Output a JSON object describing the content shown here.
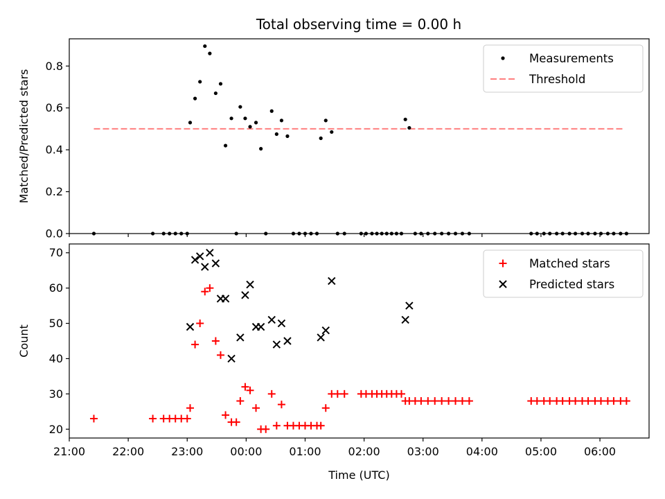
{
  "title": "Total observing time = 0.00 h",
  "colors": {
    "measurement": "#000000",
    "threshold": "#ff7f7f",
    "matched": "#ff0000",
    "predicted": "#000000"
  },
  "chart_data": [
    {
      "type": "scatter",
      "ylabel": "Matched/Predicted stars",
      "xlim": [
        "21:00",
        "06:50"
      ],
      "ylim": [
        0,
        0.93
      ],
      "y_ticks": [
        "0.0",
        "0.2",
        "0.4",
        "0.6",
        "0.8"
      ],
      "legend_position": "top-right",
      "legend": [
        "Measurements",
        "Threshold"
      ],
      "threshold": {
        "value": 0.5,
        "x_start": "21:25",
        "x_end": "06:25"
      },
      "series": [
        {
          "name": "Measurements",
          "points": [
            [
              "21:25",
              0
            ],
            [
              "22:25",
              0
            ],
            [
              "22:36",
              0
            ],
            [
              "22:42",
              0
            ],
            [
              "22:48",
              0
            ],
            [
              "22:54",
              0
            ],
            [
              "23:00",
              0
            ],
            [
              "23:03",
              0.53
            ],
            [
              "23:08",
              0.645
            ],
            [
              "23:13",
              0.725
            ],
            [
              "23:18",
              0.895
            ],
            [
              "23:23",
              0.86
            ],
            [
              "23:29",
              0.67
            ],
            [
              "23:34",
              0.715
            ],
            [
              "23:39",
              0.42
            ],
            [
              "23:45",
              0.55
            ],
            [
              "23:50",
              0
            ],
            [
              "23:54",
              0.605
            ],
            [
              "23:59",
              0.55
            ],
            [
              "00:04",
              0.51
            ],
            [
              "00:10",
              0.53
            ],
            [
              "00:15",
              0.405
            ],
            [
              "00:20",
              0
            ],
            [
              "00:26",
              0.585
            ],
            [
              "00:31",
              0.475
            ],
            [
              "00:36",
              0.54
            ],
            [
              "00:42",
              0.465
            ],
            [
              "00:48",
              0
            ],
            [
              "00:54",
              0
            ],
            [
              "01:00",
              0
            ],
            [
              "01:06",
              0
            ],
            [
              "01:12",
              0
            ],
            [
              "01:16",
              0.455
            ],
            [
              "01:21",
              0.54
            ],
            [
              "01:27",
              0.485
            ],
            [
              "01:33",
              0
            ],
            [
              "01:40",
              0
            ],
            [
              "01:57",
              0
            ],
            [
              "02:02",
              0
            ],
            [
              "02:08",
              0
            ],
            [
              "02:13",
              0
            ],
            [
              "02:18",
              0
            ],
            [
              "02:23",
              0
            ],
            [
              "02:28",
              0
            ],
            [
              "02:33",
              0
            ],
            [
              "02:38",
              0
            ],
            [
              "02:42",
              0.545
            ],
            [
              "02:46",
              0.505
            ],
            [
              "02:52",
              0
            ],
            [
              "02:58",
              0
            ],
            [
              "03:05",
              0
            ],
            [
              "03:12",
              0
            ],
            [
              "03:19",
              0
            ],
            [
              "03:26",
              0
            ],
            [
              "03:33",
              0
            ],
            [
              "03:40",
              0
            ],
            [
              "03:47",
              0
            ],
            [
              "04:50",
              0
            ],
            [
              "04:56",
              0
            ],
            [
              "05:03",
              0
            ],
            [
              "05:09",
              0
            ],
            [
              "05:16",
              0
            ],
            [
              "05:22",
              0
            ],
            [
              "05:29",
              0
            ],
            [
              "05:35",
              0
            ],
            [
              "05:42",
              0
            ],
            [
              "05:48",
              0
            ],
            [
              "05:55",
              0
            ],
            [
              "06:01",
              0
            ],
            [
              "06:08",
              0
            ],
            [
              "06:14",
              0
            ],
            [
              "06:21",
              0
            ],
            [
              "06:27",
              0
            ]
          ]
        }
      ]
    },
    {
      "type": "scatter",
      "xlabel": "Time (UTC)",
      "ylabel": "Count",
      "xlim": [
        "21:00",
        "06:50"
      ],
      "ylim": [
        17.5,
        72.5
      ],
      "x_ticks": [
        "21:00",
        "22:00",
        "23:00",
        "00:00",
        "01:00",
        "02:00",
        "03:00",
        "04:00",
        "05:00",
        "06:00"
      ],
      "y_ticks": [
        "20",
        "30",
        "40",
        "50",
        "60",
        "70"
      ],
      "legend_position": "top-right",
      "legend": [
        "Matched stars",
        "Predicted stars"
      ],
      "series": [
        {
          "name": "Matched stars",
          "points": [
            [
              "21:25",
              23
            ],
            [
              "22:25",
              23
            ],
            [
              "22:36",
              23
            ],
            [
              "22:42",
              23
            ],
            [
              "22:48",
              23
            ],
            [
              "22:54",
              23
            ],
            [
              "23:00",
              23
            ],
            [
              "23:03",
              26
            ],
            [
              "23:08",
              44
            ],
            [
              "23:13",
              50
            ],
            [
              "23:18",
              59
            ],
            [
              "23:23",
              60
            ],
            [
              "23:29",
              45
            ],
            [
              "23:34",
              41
            ],
            [
              "23:39",
              24
            ],
            [
              "23:45",
              22
            ],
            [
              "23:50",
              22
            ],
            [
              "23:54",
              28
            ],
            [
              "23:59",
              32
            ],
            [
              "00:04",
              31
            ],
            [
              "00:10",
              26
            ],
            [
              "00:15",
              20
            ],
            [
              "00:20",
              20
            ],
            [
              "00:26",
              30
            ],
            [
              "00:31",
              21
            ],
            [
              "00:36",
              27
            ],
            [
              "00:42",
              21
            ],
            [
              "00:48",
              21
            ],
            [
              "00:54",
              21
            ],
            [
              "01:00",
              21
            ],
            [
              "01:06",
              21
            ],
            [
              "01:12",
              21
            ],
            [
              "01:16",
              21
            ],
            [
              "01:21",
              26
            ],
            [
              "01:27",
              30
            ],
            [
              "01:33",
              30
            ],
            [
              "01:40",
              30
            ],
            [
              "01:57",
              30
            ],
            [
              "02:02",
              30
            ],
            [
              "02:08",
              30
            ],
            [
              "02:13",
              30
            ],
            [
              "02:18",
              30
            ],
            [
              "02:23",
              30
            ],
            [
              "02:28",
              30
            ],
            [
              "02:33",
              30
            ],
            [
              "02:38",
              30
            ],
            [
              "02:42",
              28
            ],
            [
              "02:46",
              28
            ],
            [
              "02:52",
              28
            ],
            [
              "02:58",
              28
            ],
            [
              "03:05",
              28
            ],
            [
              "03:12",
              28
            ],
            [
              "03:19",
              28
            ],
            [
              "03:26",
              28
            ],
            [
              "03:33",
              28
            ],
            [
              "03:40",
              28
            ],
            [
              "03:47",
              28
            ],
            [
              "04:50",
              28
            ],
            [
              "04:56",
              28
            ],
            [
              "05:03",
              28
            ],
            [
              "05:09",
              28
            ],
            [
              "05:16",
              28
            ],
            [
              "05:22",
              28
            ],
            [
              "05:29",
              28
            ],
            [
              "05:35",
              28
            ],
            [
              "05:42",
              28
            ],
            [
              "05:48",
              28
            ],
            [
              "05:55",
              28
            ],
            [
              "06:01",
              28
            ],
            [
              "06:08",
              28
            ],
            [
              "06:14",
              28
            ],
            [
              "06:21",
              28
            ],
            [
              "06:27",
              28
            ]
          ]
        },
        {
          "name": "Predicted stars",
          "points": [
            [
              "23:03",
              49
            ],
            [
              "23:08",
              68
            ],
            [
              "23:13",
              69
            ],
            [
              "23:18",
              66
            ],
            [
              "23:23",
              70
            ],
            [
              "23:29",
              67
            ],
            [
              "23:34",
              57
            ],
            [
              "23:39",
              57
            ],
            [
              "23:45",
              40
            ],
            [
              "23:54",
              46
            ],
            [
              "23:59",
              58
            ],
            [
              "00:04",
              61
            ],
            [
              "00:10",
              49
            ],
            [
              "00:15",
              49
            ],
            [
              "00:26",
              51
            ],
            [
              "00:31",
              44
            ],
            [
              "00:36",
              50
            ],
            [
              "00:42",
              45
            ],
            [
              "01:16",
              46
            ],
            [
              "01:21",
              48
            ],
            [
              "01:27",
              62
            ],
            [
              "02:42",
              51
            ],
            [
              "02:46",
              55
            ]
          ]
        }
      ]
    }
  ]
}
